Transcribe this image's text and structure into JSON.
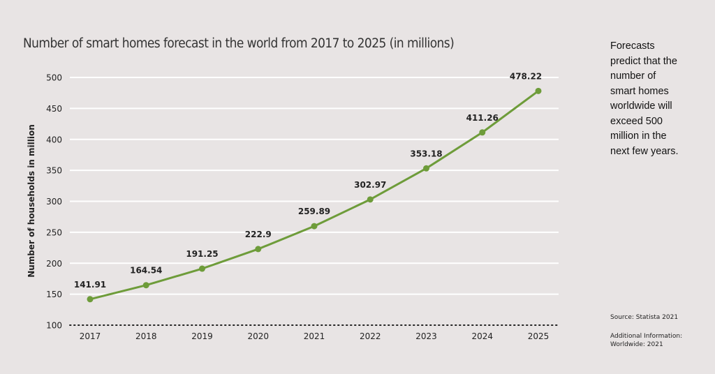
{
  "chart_data": {
    "type": "line",
    "title": "Number of smart homes forecast in the world from 2017 to 2025 (in millions)",
    "xlabel": "",
    "ylabel": "Number of households in million",
    "categories": [
      "2017",
      "2018",
      "2019",
      "2020",
      "2021",
      "2022",
      "2023",
      "2024",
      "2025"
    ],
    "values": [
      141.91,
      164.54,
      191.25,
      222.9,
      259.89,
      302.97,
      353.18,
      411.26,
      478.22
    ],
    "data_labels": [
      "141.91",
      "164.54",
      "191.25",
      "222.9",
      "259.89",
      "302.97",
      "353.18",
      "411.26",
      "478.22"
    ],
    "ylim": [
      100,
      500
    ],
    "yticks": [
      "500",
      "450",
      "400",
      "350",
      "300",
      "250",
      "200",
      "150",
      "100"
    ],
    "ytick_values": [
      500,
      450,
      400,
      350,
      300,
      250,
      200,
      150,
      100
    ],
    "grid": true,
    "line_color": "#6e9c3a",
    "grid_color": "#ffffff",
    "background": "#e8e4e4"
  },
  "side": {
    "note": "Forecasts predict that the number of smart homes worldwide will exceed 500 million in the next few years.",
    "note_lines": [
      "Forecasts",
      "predict that the",
      "number of",
      "smart homes",
      "worldwide will",
      "exceed 500",
      "million in the",
      "next few years."
    ],
    "source": "Source: Statista 2021",
    "additional_lines": [
      "Additional Information:",
      "Worldwide: 2021"
    ]
  }
}
